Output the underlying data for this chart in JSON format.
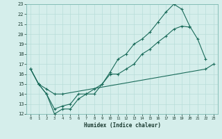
{
  "xlabel": "Humidex (Indice chaleur)",
  "xlim": [
    -0.5,
    23.5
  ],
  "ylim": [
    12,
    23
  ],
  "xticks": [
    0,
    1,
    2,
    3,
    4,
    5,
    6,
    7,
    8,
    9,
    10,
    11,
    12,
    13,
    14,
    15,
    16,
    17,
    18,
    19,
    20,
    21,
    22,
    23
  ],
  "yticks": [
    12,
    13,
    14,
    15,
    16,
    17,
    18,
    19,
    20,
    21,
    22,
    23
  ],
  "bg_color": "#d5eeeb",
  "grid_color": "#b8ddd9",
  "line_color": "#1a6b5a",
  "line1_x": [
    0,
    1,
    2,
    3,
    4,
    5,
    6,
    7,
    8,
    9,
    10,
    11,
    12,
    13,
    14,
    15,
    16,
    17,
    18,
    19,
    20,
    21,
    22
  ],
  "line1_y": [
    16.5,
    15,
    14,
    12,
    12.5,
    12.5,
    13.5,
    14,
    14,
    15,
    16.2,
    17.5,
    18.0,
    19.0,
    19.5,
    20.2,
    21.2,
    22.2,
    23.0,
    22.5,
    20.8,
    19.5,
    17.5
  ],
  "line2_x": [
    0,
    1,
    2,
    3,
    4,
    5,
    6,
    7,
    8,
    9,
    10,
    11,
    12,
    13,
    14,
    15,
    16,
    17,
    18,
    19,
    20
  ],
  "line2_y": [
    16.5,
    15,
    14,
    12.5,
    12.8,
    13.0,
    14.0,
    14.0,
    14.5,
    15.0,
    16.0,
    16.0,
    16.5,
    17.0,
    18.0,
    18.5,
    19.2,
    19.8,
    20.5,
    20.8,
    20.7
  ],
  "line3_x": [
    0,
    1,
    2,
    3,
    4,
    22,
    23
  ],
  "line3_y": [
    16.5,
    15,
    14.5,
    14.0,
    14.0,
    16.5,
    17.0
  ]
}
